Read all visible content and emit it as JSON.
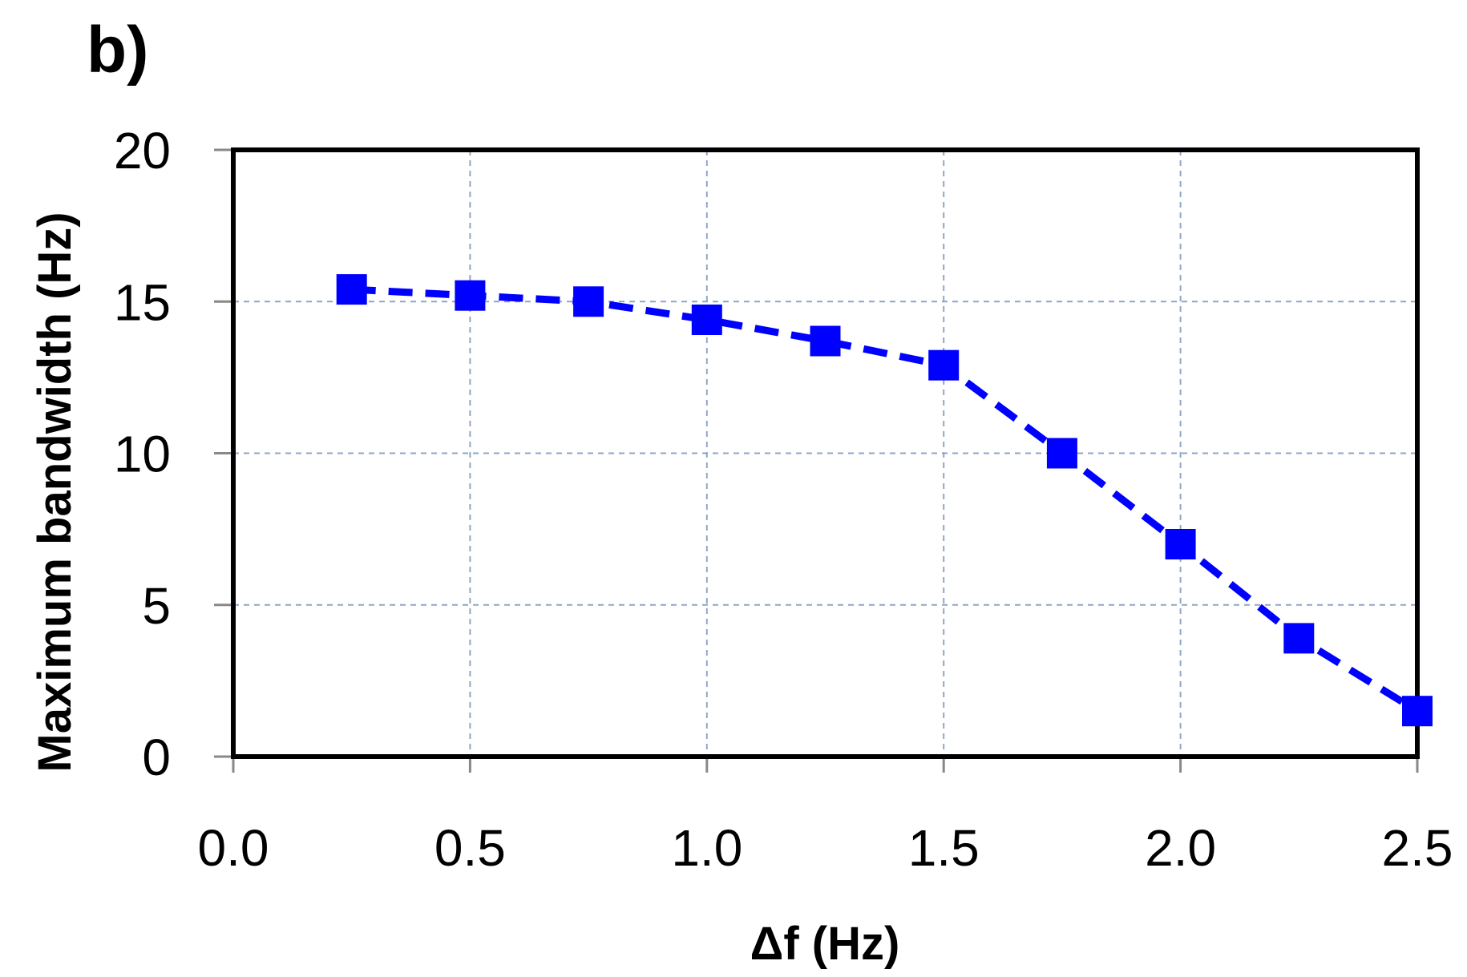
{
  "panel_label": "b)",
  "colors": {
    "series": "#0000ff",
    "grid": "#8ea6c6",
    "border": "#000000"
  },
  "chart_data": {
    "type": "line",
    "xlabel": "Δf (Hz)",
    "ylabel": "Maximum bandwidth (Hz)",
    "xlim": [
      0.0,
      2.5
    ],
    "ylim": [
      0,
      20
    ],
    "x_ticks": [
      "0.0",
      "0.5",
      "1.0",
      "1.5",
      "2.0",
      "2.5"
    ],
    "y_ticks": [
      "0",
      "5",
      "10",
      "15",
      "20"
    ],
    "grid": true,
    "series": [
      {
        "marker": "square",
        "line_style": "dashed",
        "x": [
          0.25,
          0.5,
          0.75,
          1.0,
          1.25,
          1.5,
          1.75,
          2.0,
          2.25,
          2.5
        ],
        "y": [
          15.4,
          15.2,
          15.0,
          14.4,
          13.7,
          12.9,
          10.0,
          7.0,
          3.9,
          1.5
        ]
      }
    ]
  }
}
